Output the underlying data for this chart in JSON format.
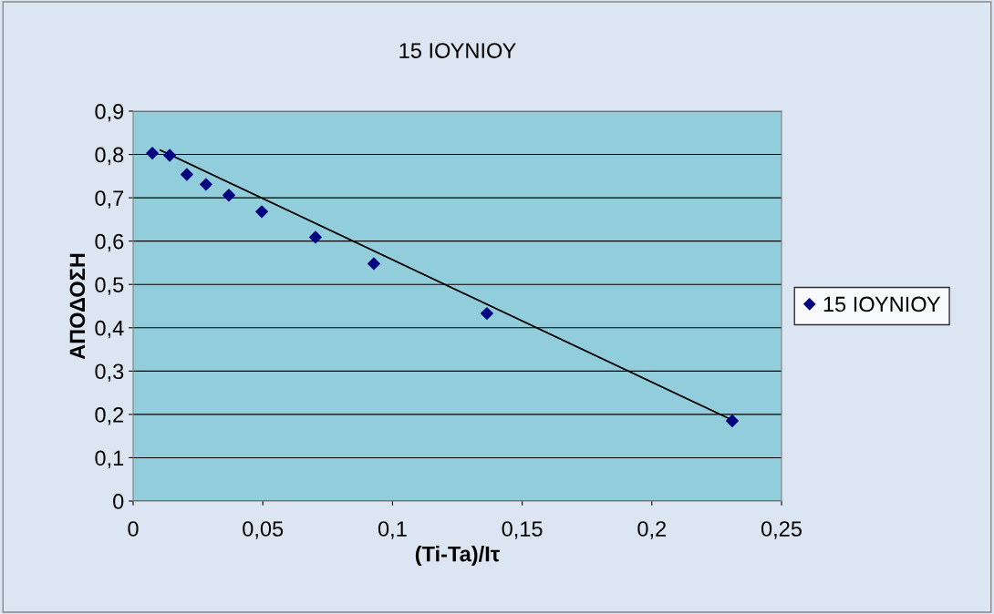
{
  "chart_data": {
    "type": "scatter",
    "title": "15 ΙΟΥΝΙΟΥ",
    "xlabel": "(Ti-Ta)/Iτ",
    "ylabel": "ΑΠΟΔΟΣΗ",
    "series": [
      {
        "name": "15 ΙΟΥΝΙΟΥ",
        "color": "#000080",
        "marker": "diamond",
        "x": [
          0.0074,
          0.0141,
          0.0207,
          0.0281,
          0.0369,
          0.0496,
          0.0703,
          0.0928,
          0.1364,
          0.231
        ],
        "values": [
          0.803,
          0.798,
          0.754,
          0.731,
          0.706,
          0.668,
          0.609,
          0.548,
          0.433,
          0.185
        ]
      },
      {
        "color": "#000000",
        "type": "line",
        "marker": "none",
        "x": [
          0.0105,
          0.231
        ],
        "values": [
          0.81,
          0.187
        ]
      }
    ],
    "xlim": [
      0,
      0.25
    ],
    "ylim": [
      0,
      0.9
    ],
    "xticks": [
      0,
      {
        "value": 0.05,
        "label": "0,05"
      },
      {
        "value": 0.1,
        "label": "0,1"
      },
      {
        "value": 0.15,
        "label": "0,15"
      },
      {
        "value": 0.2,
        "label": "0,2"
      },
      {
        "value": 0.25,
        "label": "0,25"
      }
    ],
    "yticks": [
      0,
      {
        "value": 0.1,
        "label": "0,1"
      },
      {
        "value": 0.2,
        "label": "0,2"
      },
      {
        "value": 0.3,
        "label": "0,3"
      },
      {
        "value": 0.4,
        "label": "0,4"
      },
      {
        "value": 0.5,
        "label": "0,5"
      },
      {
        "value": 0.6,
        "label": "0,6"
      },
      {
        "value": 0.7,
        "label": "0,7"
      },
      {
        "value": 0.8,
        "label": "0,8"
      },
      {
        "value": 0.9,
        "label": "0,9"
      }
    ],
    "grid": "y",
    "legend": "right"
  }
}
